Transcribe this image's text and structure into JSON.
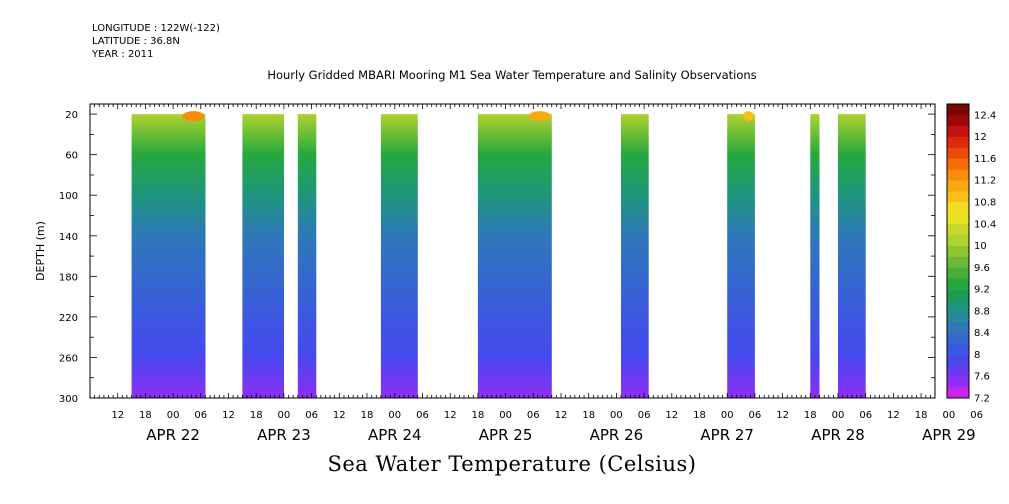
{
  "meta": {
    "longitude": "LONGITUDE : 122W(-122)",
    "latitude": "LATITUDE : 36.8N",
    "year": "YEAR : 2011"
  },
  "chart_data": {
    "type": "heatmap",
    "title": "Hourly Gridded MBARI Mooring M1 Sea Water Temperature and Salinity Observations",
    "xlabel": "Sea Water Temperature (Celsius)",
    "ylabel": "DEPTH (m)",
    "ylim": [
      300,
      10
    ],
    "y_inverted": true,
    "xlim_hours": [
      0,
      183
    ],
    "x_hour_ticks": [
      "12",
      "18",
      "00",
      "06",
      "12",
      "18",
      "00",
      "06",
      "12",
      "18",
      "00",
      "06",
      "12",
      "18",
      "00",
      "06",
      "12",
      "18",
      "00",
      "06",
      "12",
      "18",
      "00",
      "06",
      "12",
      "18",
      "00",
      "06",
      "12",
      "18",
      "00",
      "06"
    ],
    "x_date_labels": [
      "APR 22",
      "APR 23",
      "APR 24",
      "APR 25",
      "APR 26",
      "APR 27",
      "APR 28",
      "APR 29"
    ],
    "y_ticks": [
      20,
      60,
      100,
      140,
      180,
      220,
      260,
      300
    ],
    "colorbar": {
      "levels": [
        7.2,
        7.4,
        7.6,
        7.8,
        8.0,
        8.2,
        8.4,
        8.6,
        8.8,
        9.0,
        9.2,
        9.4,
        9.6,
        9.8,
        10.0,
        10.2,
        10.4,
        10.6,
        10.8,
        11.0,
        11.2,
        11.4,
        11.6,
        11.8,
        12.0,
        12.2,
        12.4,
        12.6
      ],
      "labels": [
        "7.2",
        "7.6",
        "8",
        "8.4",
        "8.8",
        "9.2",
        "9.6",
        "10",
        "10.4",
        "10.8",
        "11.2",
        "11.6",
        "12",
        "12.4"
      ],
      "colors": [
        "#cc22ee",
        "#8e2ef4",
        "#6a3af2",
        "#4848ee",
        "#3c58e0",
        "#3468cc",
        "#2e78b8",
        "#268a9a",
        "#1e967c",
        "#1c9c50",
        "#26a83e",
        "#48b038",
        "#6cba34",
        "#8ec632",
        "#aed22e",
        "#cad628",
        "#e6e224",
        "#f2e020",
        "#f6c018",
        "#f8a810",
        "#f88c0a",
        "#f66c08",
        "#ee4808",
        "#e02808",
        "#c41010",
        "#a00808",
        "#7a0606"
      ]
    },
    "temperature_by_depth": {
      "depth_m": [
        20,
        60,
        100,
        140,
        180,
        220,
        260,
        300
      ],
      "typical_celsius": [
        10.0,
        9.2,
        8.8,
        8.5,
        8.3,
        8.1,
        7.9,
        7.5
      ]
    },
    "segments": [
      {
        "start": "APR 22 15",
        "end": "APR 23 07",
        "max_surface_celsius": 11.2
      },
      {
        "start": "APR 23 15",
        "end": "APR 23 24"
      },
      {
        "start": "APR 24 03",
        "end": "APR 24 07"
      },
      {
        "start": "APR 24 21",
        "end": "APR 25 05"
      },
      {
        "start": "APR 25 18",
        "end": "APR 26 10",
        "max_surface_celsius": 11.0
      },
      {
        "start": "APR 27 01",
        "end": "APR 27 07"
      },
      {
        "start": "APR 28 00",
        "end": "APR 28 06",
        "max_surface_celsius": 10.8
      },
      {
        "start": "APR 28 18",
        "end": "APR 28 20"
      },
      {
        "start": "APR 29 00",
        "end": "APR 29 06"
      }
    ]
  }
}
